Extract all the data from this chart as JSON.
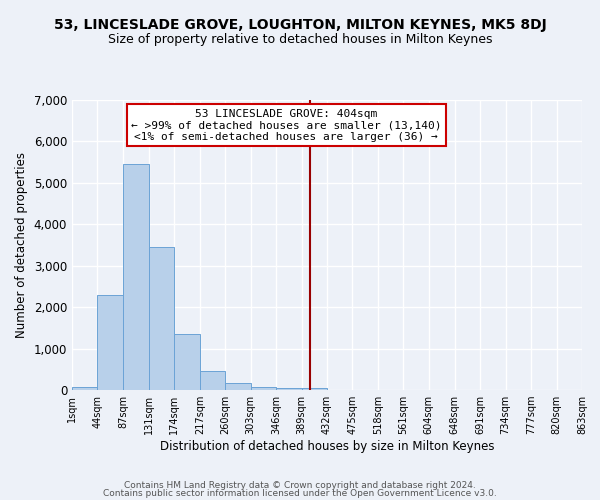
{
  "title": "53, LINCESLADE GROVE, LOUGHTON, MILTON KEYNES, MK5 8DJ",
  "subtitle": "Size of property relative to detached houses in Milton Keynes",
  "xlabel": "Distribution of detached houses by size in Milton Keynes",
  "ylabel": "Number of detached properties",
  "footer_line1": "Contains HM Land Registry data © Crown copyright and database right 2024.",
  "footer_line2": "Contains public sector information licensed under the Open Government Licence v3.0.",
  "annotation_title": "53 LINCESLADE GROVE: 404sqm",
  "annotation_line2": "← >99% of detached houses are smaller (13,140)",
  "annotation_line3": "<1% of semi-detached houses are larger (36) →",
  "bin_edges": [
    1,
    44,
    87,
    131,
    174,
    217,
    260,
    303,
    346,
    389,
    432,
    475,
    518,
    561,
    604,
    648,
    691,
    734,
    777,
    820,
    863
  ],
  "bin_labels": [
    "1sqm",
    "44sqm",
    "87sqm",
    "131sqm",
    "174sqm",
    "217sqm",
    "260sqm",
    "303sqm",
    "346sqm",
    "389sqm",
    "432sqm",
    "475sqm",
    "518sqm",
    "561sqm",
    "604sqm",
    "648sqm",
    "691sqm",
    "734sqm",
    "777sqm",
    "820sqm",
    "863sqm"
  ],
  "bar_heights": [
    70,
    2300,
    5450,
    3450,
    1350,
    450,
    170,
    70,
    50,
    50,
    0,
    0,
    0,
    0,
    0,
    0,
    0,
    0,
    0,
    0
  ],
  "bar_color": "#b8d0ea",
  "bar_edge_color": "#6ba3d6",
  "vline_x": 404,
  "vline_color": "#990000",
  "ylim": [
    0,
    7000
  ],
  "yticks": [
    0,
    1000,
    2000,
    3000,
    4000,
    5000,
    6000,
    7000
  ],
  "bg_color": "#edf1f8",
  "grid_color": "#ffffff",
  "annotation_box_color": "#ffffff",
  "annotation_border_color": "#cc0000",
  "title_fontsize": 10,
  "subtitle_fontsize": 9
}
